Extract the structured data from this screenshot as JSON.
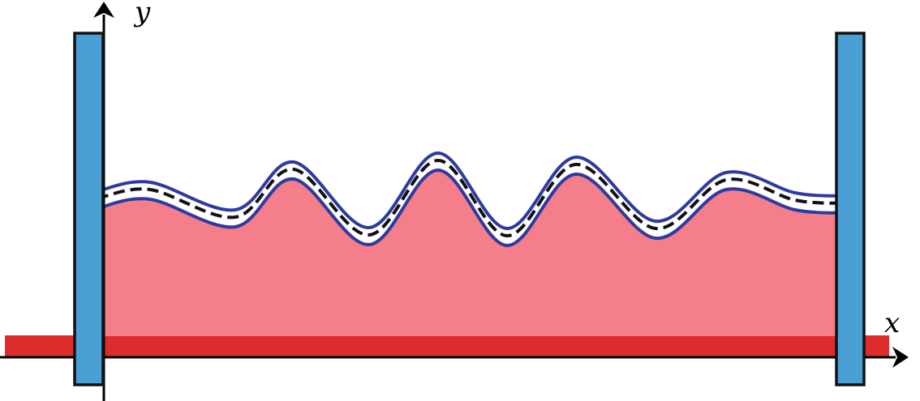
{
  "labels": {
    "x_axis": "x",
    "y_axis": "y"
  },
  "colors": {
    "wall_fill": "#4aa0d5",
    "wall_stroke": "#111111",
    "fluid_fill": "#f47e8a",
    "substrate": "#dd2c2c",
    "interface_line": "#2e3a9e",
    "dashed_line": "#111111",
    "axis": "#000000"
  },
  "icons": {
    "x_arrow": "arrowhead-right",
    "y_arrow": "arrowhead-up"
  }
}
